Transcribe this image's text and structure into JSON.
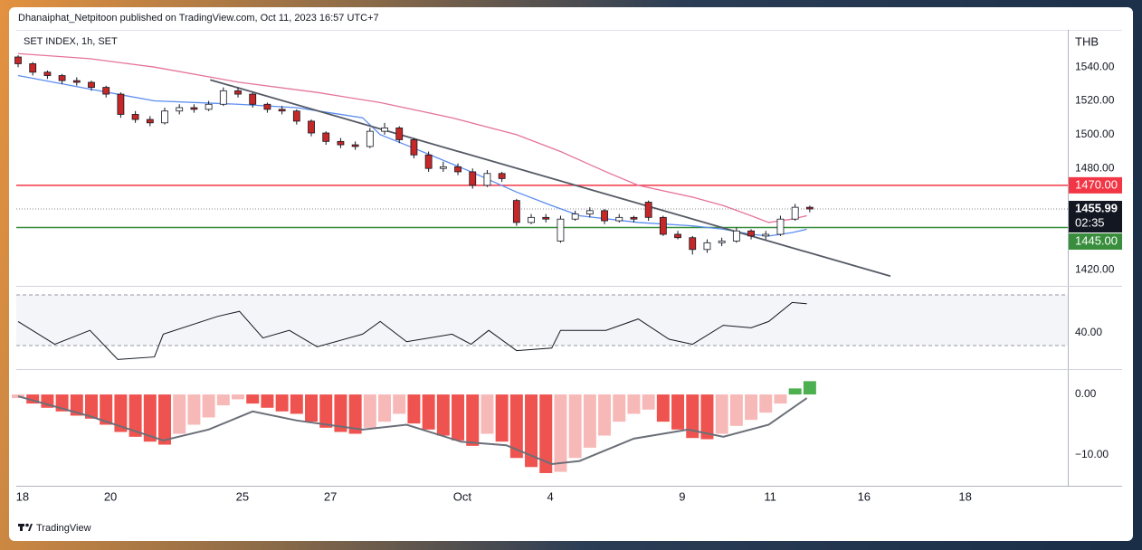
{
  "header": {
    "publisher": "Dhanaiphat_Netpitoon published on TradingView.com, Oct 11, 2023 16:57 UTC+7",
    "footer": "TradingView"
  },
  "chart_data": [
    {
      "type": "candlestick",
      "title": "SET INDEX, 1h, SET",
      "currency": "THB",
      "xlim": [
        0,
        71.6
      ],
      "xticks": [
        {
          "value": 0.3,
          "label": "18"
        },
        {
          "value": 6.3,
          "label": "20"
        },
        {
          "value": 15.3,
          "label": "25"
        },
        {
          "value": 21.3,
          "label": "27"
        },
        {
          "value": 30.3,
          "label": "Oct"
        },
        {
          "value": 36.3,
          "label": "4"
        },
        {
          "value": 45.3,
          "label": "9"
        },
        {
          "value": 51.3,
          "label": "11"
        },
        {
          "value": 57.7,
          "label": "16"
        },
        {
          "value": 64.6,
          "label": "18"
        }
      ],
      "ylim": [
        1411,
        1561
      ],
      "yticks": [
        {
          "value": 1420,
          "label": "1420.00"
        },
        {
          "value": 1480,
          "label": "1480.00"
        },
        {
          "value": 1500,
          "label": "1500.00"
        },
        {
          "value": 1520,
          "label": "1520.00"
        },
        {
          "value": 1540,
          "label": "1540.00"
        }
      ],
      "up_color": "#ffffff",
      "down_color": "#c62828",
      "border_color": "#131722",
      "open": [
        1546,
        1542,
        1537,
        1535,
        1532,
        1531,
        1528,
        1524,
        1512,
        1509,
        1507,
        1514,
        1516,
        1515,
        1518,
        1526,
        1524,
        1518,
        1515,
        1514,
        1508,
        1501,
        1496,
        1494,
        1493,
        1502,
        1504,
        1497,
        1488,
        1480,
        1481,
        1478,
        1470,
        1477,
        1461,
        1448,
        1451,
        1437,
        1450,
        1453,
        1455,
        1449,
        1451,
        1460,
        1451,
        1441,
        1439,
        1432,
        1436,
        1437,
        1443,
        1440,
        1441,
        1450,
        1457
      ],
      "high": [
        1547,
        1543,
        1538,
        1536,
        1534,
        1532,
        1529,
        1525,
        1514,
        1511,
        1516,
        1518,
        1518,
        1520,
        1528,
        1528,
        1525,
        1519,
        1517,
        1515,
        1509,
        1502,
        1498,
        1496,
        1504,
        1507,
        1505,
        1498,
        1490,
        1484,
        1483,
        1480,
        1479,
        1478,
        1462,
        1453,
        1453,
        1452,
        1455,
        1457,
        1456,
        1453,
        1452,
        1461,
        1452,
        1443,
        1440,
        1438,
        1439,
        1445,
        1444,
        1443,
        1452,
        1459,
        1458
      ],
      "low": [
        1540,
        1535,
        1533,
        1530,
        1529,
        1526,
        1522,
        1510,
        1507,
        1505,
        1506,
        1512,
        1513,
        1514,
        1517,
        1522,
        1516,
        1513,
        1512,
        1506,
        1499,
        1494,
        1492,
        1491,
        1492,
        1500,
        1495,
        1486,
        1478,
        1478,
        1476,
        1468,
        1469,
        1472,
        1446,
        1447,
        1448,
        1436,
        1449,
        1451,
        1447,
        1448,
        1448,
        1449,
        1440,
        1438,
        1429,
        1430,
        1434,
        1436,
        1438,
        1438,
        1440,
        1449,
        1454
      ],
      "close": [
        1542,
        1537,
        1535,
        1532,
        1531,
        1528,
        1524,
        1512,
        1509,
        1507,
        1514,
        1516,
        1515,
        1518,
        1526,
        1524,
        1518,
        1515,
        1514,
        1508,
        1501,
        1496,
        1494,
        1493,
        1502,
        1504,
        1497,
        1488,
        1480,
        1481,
        1478,
        1470,
        1477,
        1474,
        1448,
        1451,
        1450,
        1450,
        1453,
        1455,
        1449,
        1451,
        1450,
        1451,
        1441,
        1439,
        1432,
        1436,
        1437,
        1443,
        1440,
        1441,
        1450,
        1457,
        1455.99
      ],
      "lines": [
        {
          "color": "#5b8def",
          "x": [
            0,
            4.9,
            9.3,
            15,
            19,
            23.5,
            24.7,
            27,
            30.9,
            34,
            36.4,
            38.3,
            42.3,
            46,
            48.1,
            50,
            51.2,
            52.8,
            53.8
          ],
          "values": [
            1535,
            1527,
            1520,
            1518,
            1516,
            1510,
            1500,
            1492,
            1478,
            1466,
            1458,
            1452,
            1448,
            1446,
            1444,
            1441,
            1440,
            1442,
            1444
          ]
        },
        {
          "color": "#e57399",
          "x": [
            0,
            4.9,
            9.3,
            15.1,
            20.4,
            24.7,
            29.6,
            34,
            37,
            40.1,
            42.3,
            46,
            48.1,
            50,
            51.2,
            52.8,
            53.8
          ],
          "values": [
            1548,
            1545,
            1540,
            1531,
            1525,
            1519,
            1510,
            1500,
            1490,
            1478,
            1470,
            1463,
            1458,
            1452,
            1448,
            1450,
            1452
          ]
        }
      ],
      "trendline": {
        "color": "#555a66",
        "x": [
          13.1,
          59.5
        ],
        "values": [
          1532.5,
          1416.2
        ]
      },
      "hlines": [
        {
          "value": 1470,
          "label": "1470.00",
          "color": "#f23645"
        },
        {
          "value": 1445,
          "label": "1445.00",
          "color": "#388e3c"
        }
      ],
      "last_price": 1455.99,
      "countdown": "02:35"
    },
    {
      "type": "line",
      "color": "#131722",
      "x": [
        0,
        2.5,
        4.9,
        6.8,
        9.3,
        9.9,
        13.6,
        15.1,
        16.7,
        18.5,
        20.4,
        23.5,
        24.7,
        26.5,
        29.6,
        30.9,
        32.1,
        34,
        36.4,
        37,
        40.1,
        42.3,
        44.4,
        46,
        48.1,
        50,
        51.2,
        52.8,
        53.8
      ],
      "values": [
        49,
        31,
        42,
        19,
        21,
        39,
        53,
        57,
        36,
        42,
        29,
        39,
        49,
        33,
        39,
        31,
        42,
        26,
        28,
        42,
        42,
        51,
        35,
        31,
        46,
        44,
        49,
        64,
        63
      ],
      "ylim": [
        11.4,
        74.3
      ],
      "yticks": [
        {
          "value": 40,
          "label": "40.00"
        }
      ],
      "bands": [
        30,
        70
      ]
    },
    {
      "type": "histogram",
      "values": [
        -0.6,
        -1.5,
        -2.2,
        -2.8,
        -3.5,
        -4,
        -5,
        -6.2,
        -7,
        -7.8,
        -8.3,
        -6.5,
        -5,
        -3.8,
        -1.8,
        -0.8,
        -1.5,
        -2.2,
        -2.8,
        -3.2,
        -4.5,
        -5.5,
        -6.2,
        -6.5,
        -5.5,
        -4.5,
        -3.2,
        -4.8,
        -5.8,
        -6.8,
        -7.6,
        -8.5,
        -6.5,
        -7.8,
        -10.5,
        -12,
        -13,
        -12.8,
        -10.5,
        -8.8,
        -6.8,
        -4.5,
        -3.2,
        -2.5,
        -4.5,
        -5.8,
        -7.2,
        -7.4,
        -6.5,
        -5.2,
        -4.2,
        -3,
        -1.5,
        1,
        2.2
      ],
      "colors": {
        "fall_below": "#ef5350",
        "grow_below": "#f7b9b7",
        "grow_above": "#4caf50",
        "fall_above": "#b2dfdb"
      },
      "signal": {
        "color": "#6b6f78",
        "x": [
          0,
          4.9,
          9.9,
          13,
          16,
          19,
          23.5,
          26.5,
          30.2,
          33.3,
          36.4,
          38.3,
          42,
          45.7,
          48.1,
          51.2,
          53.8
        ],
        "values": [
          -0.3,
          -3.6,
          -7.6,
          -5.8,
          -2.8,
          -4.3,
          -5.8,
          -5,
          -7.8,
          -8.4,
          -11.5,
          -11,
          -7.3,
          -5.8,
          -7,
          -5,
          -0.6
        ]
      },
      "ylim": [
        -14.8,
        3.9
      ],
      "yticks": [
        {
          "value": 0,
          "label": "0.00"
        },
        {
          "value": -10,
          "label": "−10.00"
        }
      ]
    }
  ]
}
